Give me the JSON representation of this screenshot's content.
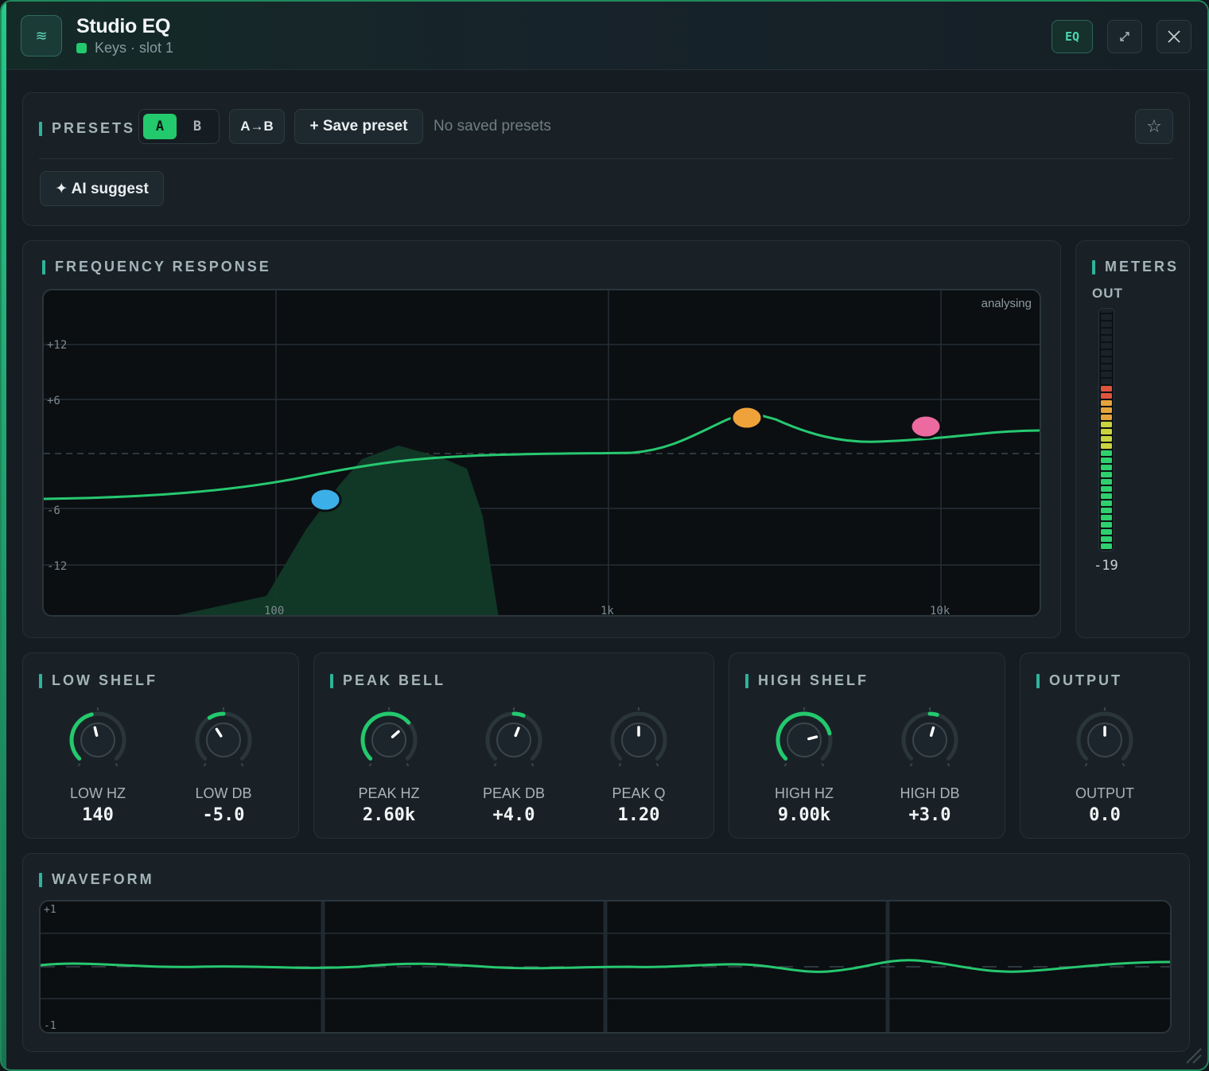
{
  "titlebar": {
    "title": "Studio EQ",
    "subtitle": "Keys · slot 1",
    "eq_badge": "EQ",
    "expand_icon": "expand-icon",
    "close_icon": "close-icon"
  },
  "presets": {
    "heading": "PRESETS",
    "slot_a": "A",
    "slot_b": "B",
    "copy_ab": "A→B",
    "save": "+ Save preset",
    "empty": "No saved presets",
    "ai_suggest": "✦ AI suggest"
  },
  "frequency": {
    "heading": "FREQUENCY RESPONSE",
    "status": "analysing",
    "y_ticks": [
      "+12",
      "+6",
      "-6",
      "-12"
    ],
    "x_ticks": [
      "100",
      "1k",
      "10k"
    ]
  },
  "meters": {
    "heading": "METERS",
    "channel": "OUT",
    "value": "-19",
    "level_fraction": 0.68
  },
  "bands": [
    {
      "heading": "LOW SHELF",
      "knobs": [
        {
          "label": "LOW HZ",
          "value": "140",
          "fraction": 0.45
        },
        {
          "label": "LOW DB",
          "value": "-5.0",
          "fraction": 0.38
        }
      ]
    },
    {
      "heading": "PEAK BELL",
      "knobs": [
        {
          "label": "PEAK HZ",
          "value": "2.60k",
          "fraction": 0.68
        },
        {
          "label": "PEAK DB",
          "value": "+4.0",
          "fraction": 0.58
        },
        {
          "label": "PEAK Q",
          "value": "1.20",
          "fraction": 0.5
        }
      ]
    },
    {
      "heading": "HIGH SHELF",
      "knobs": [
        {
          "label": "HIGH HZ",
          "value": "9.00k",
          "fraction": 0.78
        },
        {
          "label": "HIGH DB",
          "value": "+3.0",
          "fraction": 0.56
        }
      ]
    },
    {
      "heading": "OUTPUT",
      "knobs": [
        {
          "label": "OUTPUT",
          "value": "0.0",
          "fraction": 0.5
        }
      ]
    }
  ],
  "waveform": {
    "heading": "WAVEFORM",
    "y_top": "+1",
    "y_bottom": "-1"
  },
  "colors": {
    "accent": "#23c96d",
    "low_node": "#3bb0e8",
    "peak_node": "#f0a23a",
    "high_node": "#ec6a9f"
  }
}
